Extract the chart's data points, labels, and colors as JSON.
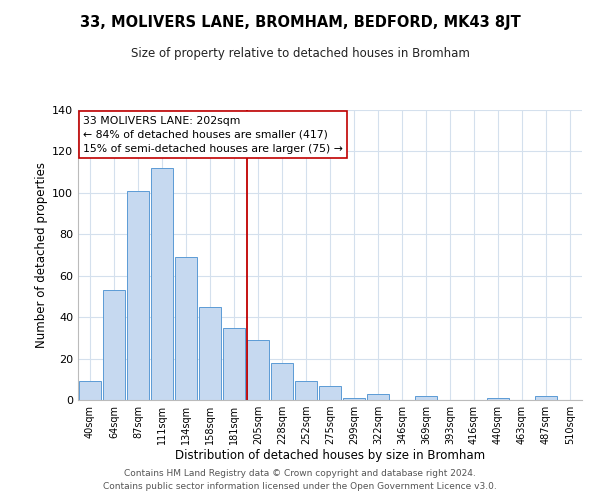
{
  "title": "33, MOLIVERS LANE, BROMHAM, BEDFORD, MK43 8JT",
  "subtitle": "Size of property relative to detached houses in Bromham",
  "xlabel": "Distribution of detached houses by size in Bromham",
  "ylabel": "Number of detached properties",
  "bar_labels": [
    "40sqm",
    "64sqm",
    "87sqm",
    "111sqm",
    "134sqm",
    "158sqm",
    "181sqm",
    "205sqm",
    "228sqm",
    "252sqm",
    "275sqm",
    "299sqm",
    "322sqm",
    "346sqm",
    "369sqm",
    "393sqm",
    "416sqm",
    "440sqm",
    "463sqm",
    "487sqm",
    "510sqm"
  ],
  "bar_heights": [
    9,
    53,
    101,
    112,
    69,
    45,
    35,
    29,
    18,
    9,
    7,
    1,
    3,
    0,
    2,
    0,
    0,
    1,
    0,
    2,
    0
  ],
  "bar_color": "#c6d9f0",
  "bar_edge_color": "#5b9bd5",
  "vline_color": "#c00000",
  "ylim": [
    0,
    140
  ],
  "annotation_line1": "33 MOLIVERS LANE: 202sqm",
  "annotation_line2": "← 84% of detached houses are smaller (417)",
  "annotation_line3": "15% of semi-detached houses are larger (75) →",
  "annotation_box_edge": "#c00000",
  "footer1": "Contains HM Land Registry data © Crown copyright and database right 2024.",
  "footer2": "Contains public sector information licensed under the Open Government Licence v3.0.",
  "background_color": "#ffffff",
  "grid_color": "#d4e0ed"
}
